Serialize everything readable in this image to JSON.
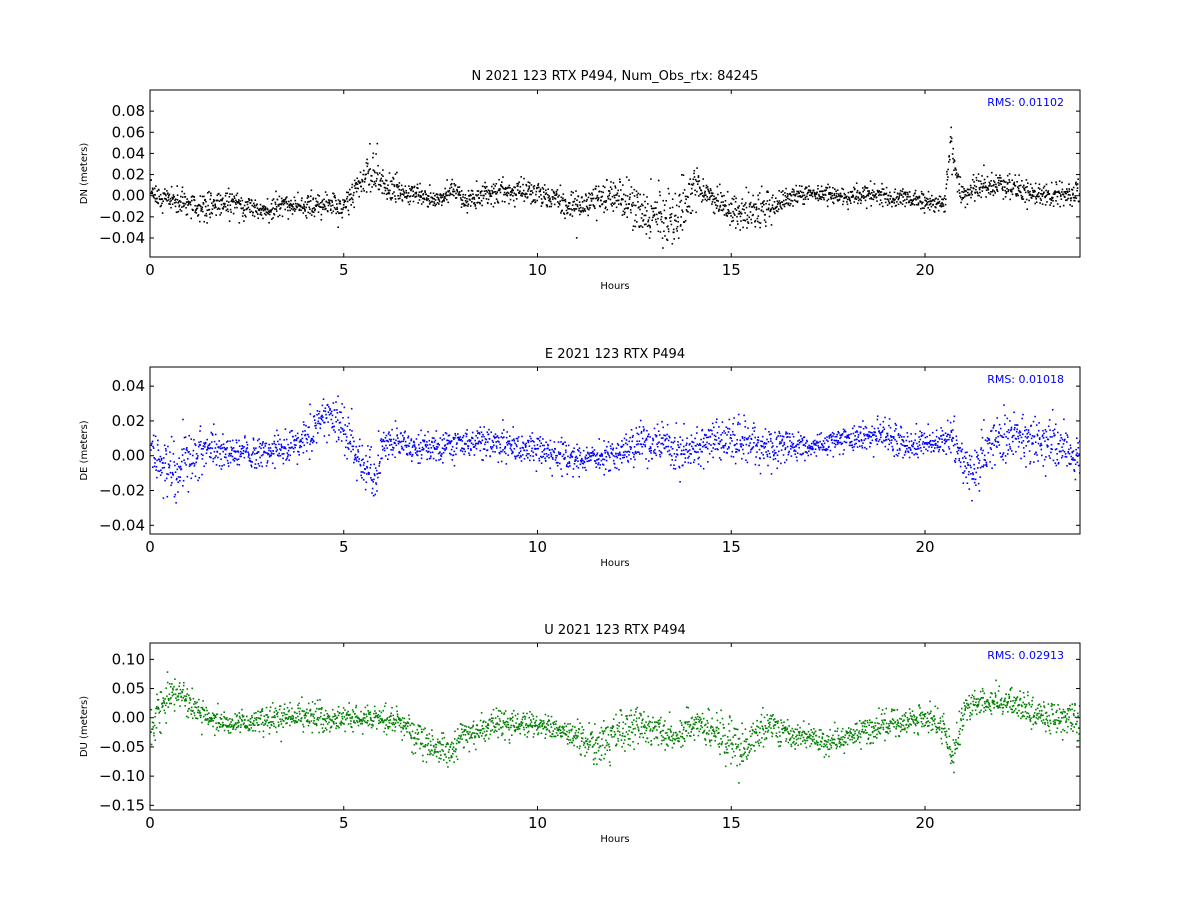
{
  "chart_data": [
    {
      "type": "scatter",
      "title": "N 2021 123 RTX  P494, Num_Obs_rtx: 84245",
      "xlabel": "Hours",
      "ylabel": "DN (meters)",
      "xlim": [
        0,
        24
      ],
      "ylim": [
        -0.058,
        0.1
      ],
      "xticks": [
        0,
        5,
        10,
        15,
        20
      ],
      "xtick_labels": [
        "0",
        "5",
        "10",
        "15",
        "20"
      ],
      "yticks": [
        -0.04,
        -0.02,
        0.0,
        0.02,
        0.04,
        0.06,
        0.08
      ],
      "ytick_labels": [
        "−0.04",
        "−0.02",
        "0.00",
        "0.02",
        "0.04",
        "0.06",
        "0.08"
      ],
      "annotation": "RMS:  0.01102",
      "annotation_color": "#0000ff",
      "grid": false,
      "series": [
        {
          "color": "#000000",
          "x": [
            0,
            0.5,
            1.0,
            1.5,
            2.0,
            2.5,
            3.0,
            3.5,
            4.0,
            4.5,
            5.0,
            5.3,
            5.6,
            5.8,
            6.0,
            6.5,
            7.0,
            7.5,
            7.8,
            8.0,
            8.5,
            9.0,
            9.5,
            10.0,
            10.5,
            11.0,
            11.5,
            12.0,
            12.5,
            13.0,
            13.5,
            13.8,
            14.0,
            14.5,
            15.0,
            15.5,
            16.0,
            16.5,
            17.0,
            17.5,
            18.0,
            18.5,
            19.0,
            19.5,
            20.0,
            20.5,
            20.65,
            20.9,
            21.2,
            21.5,
            22.0,
            22.5,
            23.0,
            23.5,
            24.0
          ],
          "y": [
            0.0,
            -0.002,
            -0.008,
            -0.01,
            -0.005,
            -0.01,
            -0.012,
            -0.008,
            -0.01,
            -0.008,
            -0.012,
            0.01,
            0.02,
            0.025,
            0.01,
            0.005,
            0.0,
            -0.003,
            0.01,
            -0.005,
            -0.002,
            0.005,
            0.005,
            0.003,
            -0.005,
            -0.01,
            -0.002,
            0.0,
            -0.01,
            -0.02,
            -0.025,
            -0.005,
            0.01,
            0.0,
            -0.015,
            -0.015,
            -0.01,
            0.0,
            0.003,
            0.002,
            0.0,
            0.002,
            0.0,
            -0.002,
            -0.005,
            -0.008,
            0.055,
            0.0,
            0.005,
            0.01,
            0.012,
            0.005,
            0.0,
            0.002,
            0.002
          ],
          "spread": [
            0.01,
            0.01,
            0.012,
            0.014,
            0.012,
            0.01,
            0.01,
            0.01,
            0.01,
            0.01,
            0.01,
            0.012,
            0.02,
            0.022,
            0.015,
            0.01,
            0.008,
            0.008,
            0.01,
            0.01,
            0.01,
            0.01,
            0.01,
            0.01,
            0.01,
            0.012,
            0.012,
            0.014,
            0.016,
            0.02,
            0.025,
            0.025,
            0.02,
            0.012,
            0.014,
            0.016,
            0.014,
            0.01,
            0.008,
            0.008,
            0.008,
            0.008,
            0.008,
            0.008,
            0.008,
            0.008,
            0.015,
            0.01,
            0.01,
            0.01,
            0.01,
            0.01,
            0.01,
            0.01,
            0.012
          ]
        }
      ]
    },
    {
      "type": "scatter",
      "title": "E 2021 123 RTX  P494",
      "xlabel": "Hours",
      "ylabel": "DE (meters)",
      "xlim": [
        0,
        24
      ],
      "ylim": [
        -0.045,
        0.051
      ],
      "xticks": [
        0,
        5,
        10,
        15,
        20
      ],
      "xtick_labels": [
        "0",
        "5",
        "10",
        "15",
        "20"
      ],
      "yticks": [
        -0.04,
        -0.02,
        0.0,
        0.02,
        0.04
      ],
      "ytick_labels": [
        "−0.04",
        "−0.02",
        "0.00",
        "0.02",
        "0.04"
      ],
      "annotation": "RMS:  0.01018",
      "annotation_color": "#0000ff",
      "grid": false,
      "series": [
        {
          "color": "#0000ff",
          "x": [
            0,
            0.3,
            0.6,
            1.0,
            1.5,
            2.0,
            2.5,
            3.0,
            3.5,
            4.0,
            4.5,
            5.0,
            5.5,
            5.8,
            6.0,
            6.5,
            7.0,
            7.5,
            8.0,
            8.5,
            9.0,
            9.5,
            10.0,
            10.5,
            11.0,
            11.5,
            12.0,
            12.5,
            13.0,
            13.5,
            14.0,
            14.5,
            15.0,
            15.5,
            16.0,
            16.5,
            17.0,
            17.5,
            18.0,
            18.5,
            19.0,
            19.5,
            20.0,
            20.5,
            20.65,
            20.8,
            21.0,
            21.3,
            21.6,
            22.0,
            22.5,
            23.0,
            23.5,
            24.0
          ],
          "y": [
            0.008,
            -0.005,
            -0.01,
            0.0,
            0.005,
            0.002,
            0.002,
            0.003,
            0.005,
            0.01,
            0.025,
            0.015,
            -0.005,
            -0.012,
            0.01,
            0.008,
            0.005,
            0.005,
            0.008,
            0.008,
            0.007,
            0.005,
            0.005,
            0.002,
            -0.002,
            0.0,
            0.0,
            0.005,
            0.008,
            0.003,
            0.005,
            0.008,
            0.01,
            0.008,
            0.005,
            0.006,
            0.005,
            0.008,
            0.01,
            0.012,
            0.012,
            0.005,
            0.008,
            0.008,
            0.015,
            0.0,
            -0.005,
            -0.01,
            0.005,
            0.012,
            0.012,
            0.008,
            0.005,
            0.0
          ],
          "spread": [
            0.012,
            0.014,
            0.014,
            0.012,
            0.01,
            0.008,
            0.008,
            0.008,
            0.008,
            0.01,
            0.014,
            0.012,
            0.012,
            0.016,
            0.01,
            0.008,
            0.008,
            0.008,
            0.008,
            0.008,
            0.008,
            0.008,
            0.008,
            0.008,
            0.008,
            0.008,
            0.008,
            0.01,
            0.01,
            0.01,
            0.01,
            0.01,
            0.012,
            0.012,
            0.01,
            0.008,
            0.006,
            0.006,
            0.006,
            0.008,
            0.008,
            0.008,
            0.008,
            0.008,
            0.012,
            0.01,
            0.01,
            0.012,
            0.012,
            0.012,
            0.012,
            0.012,
            0.012,
            0.012
          ]
        }
      ]
    },
    {
      "type": "scatter",
      "title": "U 2021 123 RTX  P494",
      "xlabel": "Hours",
      "ylabel": "DU (meters)",
      "xlim": [
        0,
        24
      ],
      "ylim": [
        -0.158,
        0.128
      ],
      "xticks": [
        0,
        5,
        10,
        15,
        20
      ],
      "xtick_labels": [
        "0",
        "5",
        "10",
        "15",
        "20"
      ],
      "yticks": [
        -0.15,
        -0.1,
        -0.05,
        0.0,
        0.05,
        0.1
      ],
      "ytick_labels": [
        "−0.15",
        "−0.10",
        "−0.05",
        "0.00",
        "0.05",
        "0.10"
      ],
      "annotation": "RMS:  0.02913",
      "annotation_color": "#0000ff",
      "grid": false,
      "series": [
        {
          "color": "#007f00",
          "x": [
            0,
            0.3,
            0.6,
            1.0,
            1.5,
            2.0,
            2.5,
            3.0,
            3.5,
            4.0,
            4.5,
            5.0,
            5.5,
            6.0,
            6.5,
            7.0,
            7.5,
            7.8,
            8.0,
            8.5,
            9.0,
            9.5,
            10.0,
            10.5,
            11.0,
            11.5,
            12.0,
            12.5,
            13.0,
            13.5,
            14.0,
            14.5,
            15.0,
            15.2,
            15.5,
            16.0,
            16.5,
            17.0,
            17.5,
            18.0,
            18.5,
            19.0,
            19.5,
            20.0,
            20.5,
            20.7,
            21.0,
            21.5,
            22.0,
            22.5,
            23.0,
            23.5,
            24.0
          ],
          "y": [
            -0.01,
            0.02,
            0.04,
            0.02,
            0.0,
            -0.01,
            -0.01,
            0.0,
            0.0,
            0.005,
            0.0,
            0.0,
            0.0,
            0.0,
            -0.01,
            -0.04,
            -0.05,
            -0.06,
            -0.03,
            -0.02,
            -0.01,
            -0.01,
            -0.01,
            -0.02,
            -0.03,
            -0.05,
            -0.02,
            -0.01,
            -0.02,
            -0.03,
            -0.01,
            -0.02,
            -0.04,
            -0.06,
            -0.03,
            -0.01,
            -0.03,
            -0.03,
            -0.04,
            -0.03,
            -0.02,
            -0.01,
            -0.005,
            0.0,
            -0.02,
            -0.07,
            0.02,
            0.03,
            0.03,
            0.02,
            0.0,
            0.0,
            -0.01
          ],
          "spread": [
            0.03,
            0.03,
            0.03,
            0.022,
            0.02,
            0.018,
            0.018,
            0.022,
            0.022,
            0.022,
            0.022,
            0.022,
            0.022,
            0.02,
            0.02,
            0.025,
            0.025,
            0.03,
            0.022,
            0.02,
            0.02,
            0.02,
            0.02,
            0.02,
            0.025,
            0.035,
            0.035,
            0.03,
            0.025,
            0.025,
            0.025,
            0.03,
            0.035,
            0.04,
            0.025,
            0.022,
            0.02,
            0.018,
            0.018,
            0.018,
            0.02,
            0.02,
            0.02,
            0.02,
            0.02,
            0.03,
            0.025,
            0.022,
            0.022,
            0.022,
            0.025,
            0.03,
            0.03
          ]
        }
      ]
    }
  ]
}
